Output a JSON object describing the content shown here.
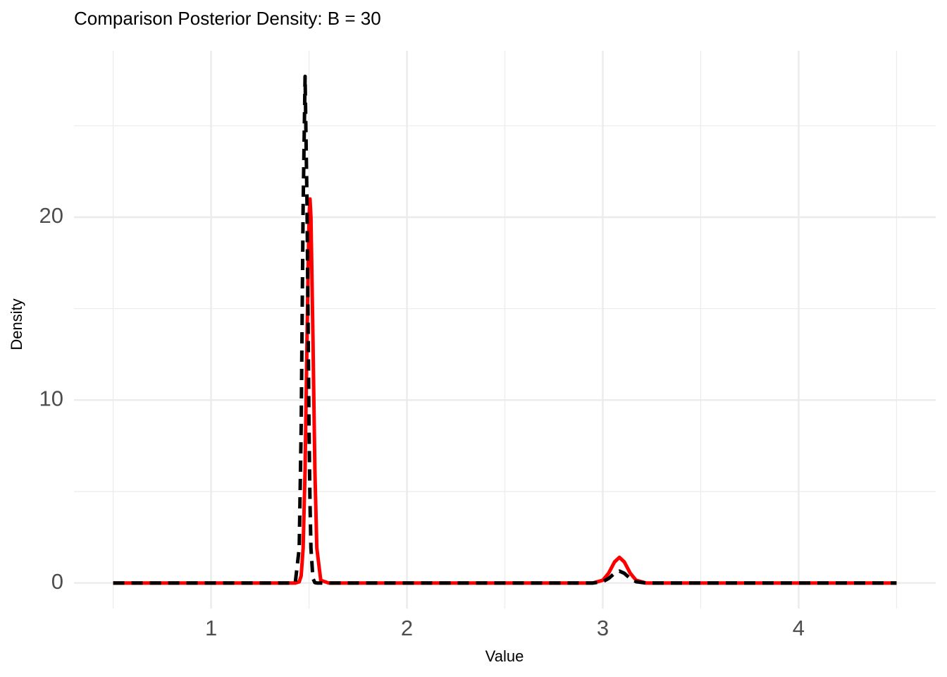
{
  "chart_data": {
    "type": "line",
    "title": "Comparison Posterior Density: B = 30",
    "x_label": "Value",
    "y_label": "Density",
    "x": [
      0.5,
      1.0,
      1.4,
      1.43,
      1.45,
      1.46,
      1.47,
      1.48,
      1.49,
      1.5,
      1.505,
      1.51,
      1.52,
      1.53,
      1.54,
      1.56,
      1.6,
      2.0,
      2.9,
      2.95,
      3.0,
      3.03,
      3.06,
      3.085,
      3.11,
      3.14,
      3.17,
      3.22,
      3.25,
      3.5,
      4.0,
      4.5
    ],
    "series": [
      {
        "color": "#ff0000",
        "dashed": false,
        "values": [
          0,
          0,
          0,
          0,
          0.06,
          0.4,
          1.9,
          6.2,
          13.5,
          20,
          21,
          20,
          13.5,
          6.2,
          1.9,
          0.15,
          0,
          0,
          0,
          0,
          0.15,
          0.54,
          1.15,
          1.4,
          1.15,
          0.54,
          0.15,
          0,
          0,
          0,
          0,
          0
        ]
      },
      {
        "color": "#000000",
        "dashed": true,
        "values": [
          0,
          0,
          0,
          0.02,
          1.9,
          8.5,
          20.6,
          27.7,
          20.6,
          8.5,
          4.4,
          1.9,
          0.25,
          0.02,
          0,
          0,
          0,
          0,
          0,
          0,
          0.07,
          0.25,
          0.53,
          0.65,
          0.53,
          0.25,
          0.07,
          0,
          0,
          0,
          0,
          0
        ]
      }
    ],
    "xlim": [
      0.3,
      4.7
    ],
    "ylim": [
      -1.4,
      29.1
    ],
    "xticks": [
      1,
      2,
      3,
      4
    ],
    "yticks": [
      0,
      10,
      20
    ],
    "grid": true,
    "minor_grid": true
  }
}
